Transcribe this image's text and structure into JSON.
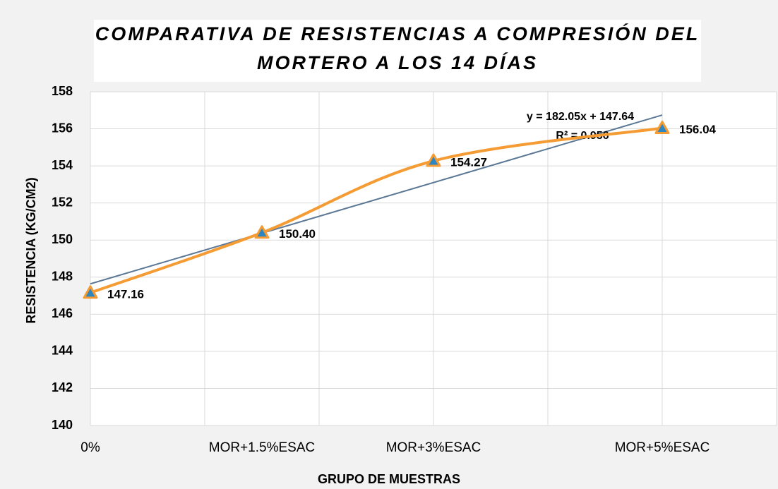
{
  "chart_data": {
    "type": "line",
    "title": [
      "COMPARATIVA DE RESISTENCIAS A COMPRESIÓN DEL",
      "MORTERO A LOS 14 DÍAS"
    ],
    "x_label": "GRUPO DE MUESTRAS",
    "y_label": "RESISTENCIA (KG/CM2)",
    "categories": [
      "0%",
      "MOR+1.5%ESAC",
      "MOR+3%ESAC",
      "MOR+5%ESAC"
    ],
    "x": [
      0,
      0.015,
      0.03,
      0.05
    ],
    "series": [
      {
        "color": "#f59b33",
        "marker_color": "#2e86c1",
        "values": [
          147.16,
          150.4,
          154.27,
          156.04
        ],
        "value_labels": [
          "147.16",
          "150.40",
          "154.27",
          "156.04"
        ]
      }
    ],
    "trendline": {
      "slope": 182.05,
      "intercept": 147.64,
      "color": "#5b7895",
      "equation": "y = 182.05x + 147.64",
      "r2": "R² = 0.956"
    },
    "xlim": [
      0,
      0.06
    ],
    "x_grid": [
      0,
      0.01,
      0.02,
      0.03,
      0.04,
      0.05,
      0.06
    ],
    "ylim": [
      140,
      158
    ],
    "yticks": [
      140,
      142,
      144,
      146,
      148,
      150,
      152,
      154,
      156,
      158
    ],
    "grid": true
  }
}
